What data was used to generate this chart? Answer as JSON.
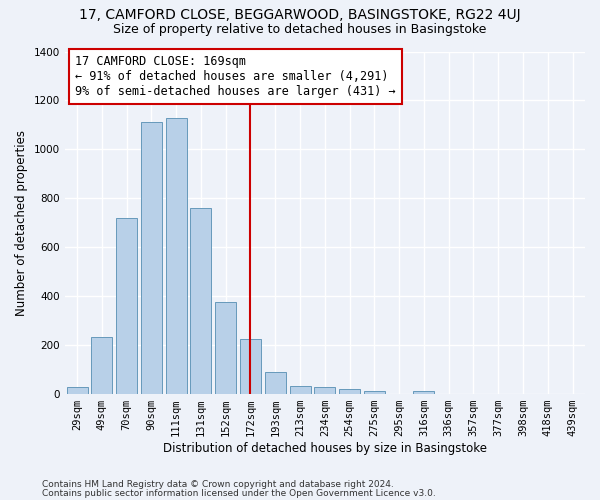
{
  "title": "17, CAMFORD CLOSE, BEGGARWOOD, BASINGSTOKE, RG22 4UJ",
  "subtitle": "Size of property relative to detached houses in Basingstoke",
  "xlabel": "Distribution of detached houses by size in Basingstoke",
  "ylabel": "Number of detached properties",
  "footnote1": "Contains HM Land Registry data © Crown copyright and database right 2024.",
  "footnote2": "Contains public sector information licensed under the Open Government Licence v3.0.",
  "categories": [
    "29sqm",
    "49sqm",
    "70sqm",
    "90sqm",
    "111sqm",
    "131sqm",
    "152sqm",
    "172sqm",
    "193sqm",
    "213sqm",
    "234sqm",
    "254sqm",
    "275sqm",
    "295sqm",
    "316sqm",
    "336sqm",
    "357sqm",
    "377sqm",
    "398sqm",
    "418sqm",
    "439sqm"
  ],
  "bar_values": [
    30,
    235,
    720,
    1110,
    1130,
    760,
    375,
    225,
    90,
    32,
    27,
    20,
    14,
    0,
    12,
    0,
    0,
    0,
    0,
    0,
    0
  ],
  "bar_color": "#b8d0e8",
  "bar_edge_color": "#6699bb",
  "vline_bin_index": 7,
  "vline_color": "#cc0000",
  "annotation_line1": "17 CAMFORD CLOSE: 169sqm",
  "annotation_line2": "← 91% of detached houses are smaller (4,291)",
  "annotation_line3": "9% of semi-detached houses are larger (431) →",
  "annotation_box_edgecolor": "#cc0000",
  "ylim": [
    0,
    1400
  ],
  "yticks": [
    0,
    200,
    400,
    600,
    800,
    1000,
    1200,
    1400
  ],
  "background_color": "#eef2f9",
  "grid_color": "#ffffff",
  "title_fontsize": 10,
  "subtitle_fontsize": 9,
  "axis_label_fontsize": 8.5,
  "tick_fontsize": 7.5,
  "annotation_fontsize": 8.5,
  "footnote_fontsize": 6.5
}
